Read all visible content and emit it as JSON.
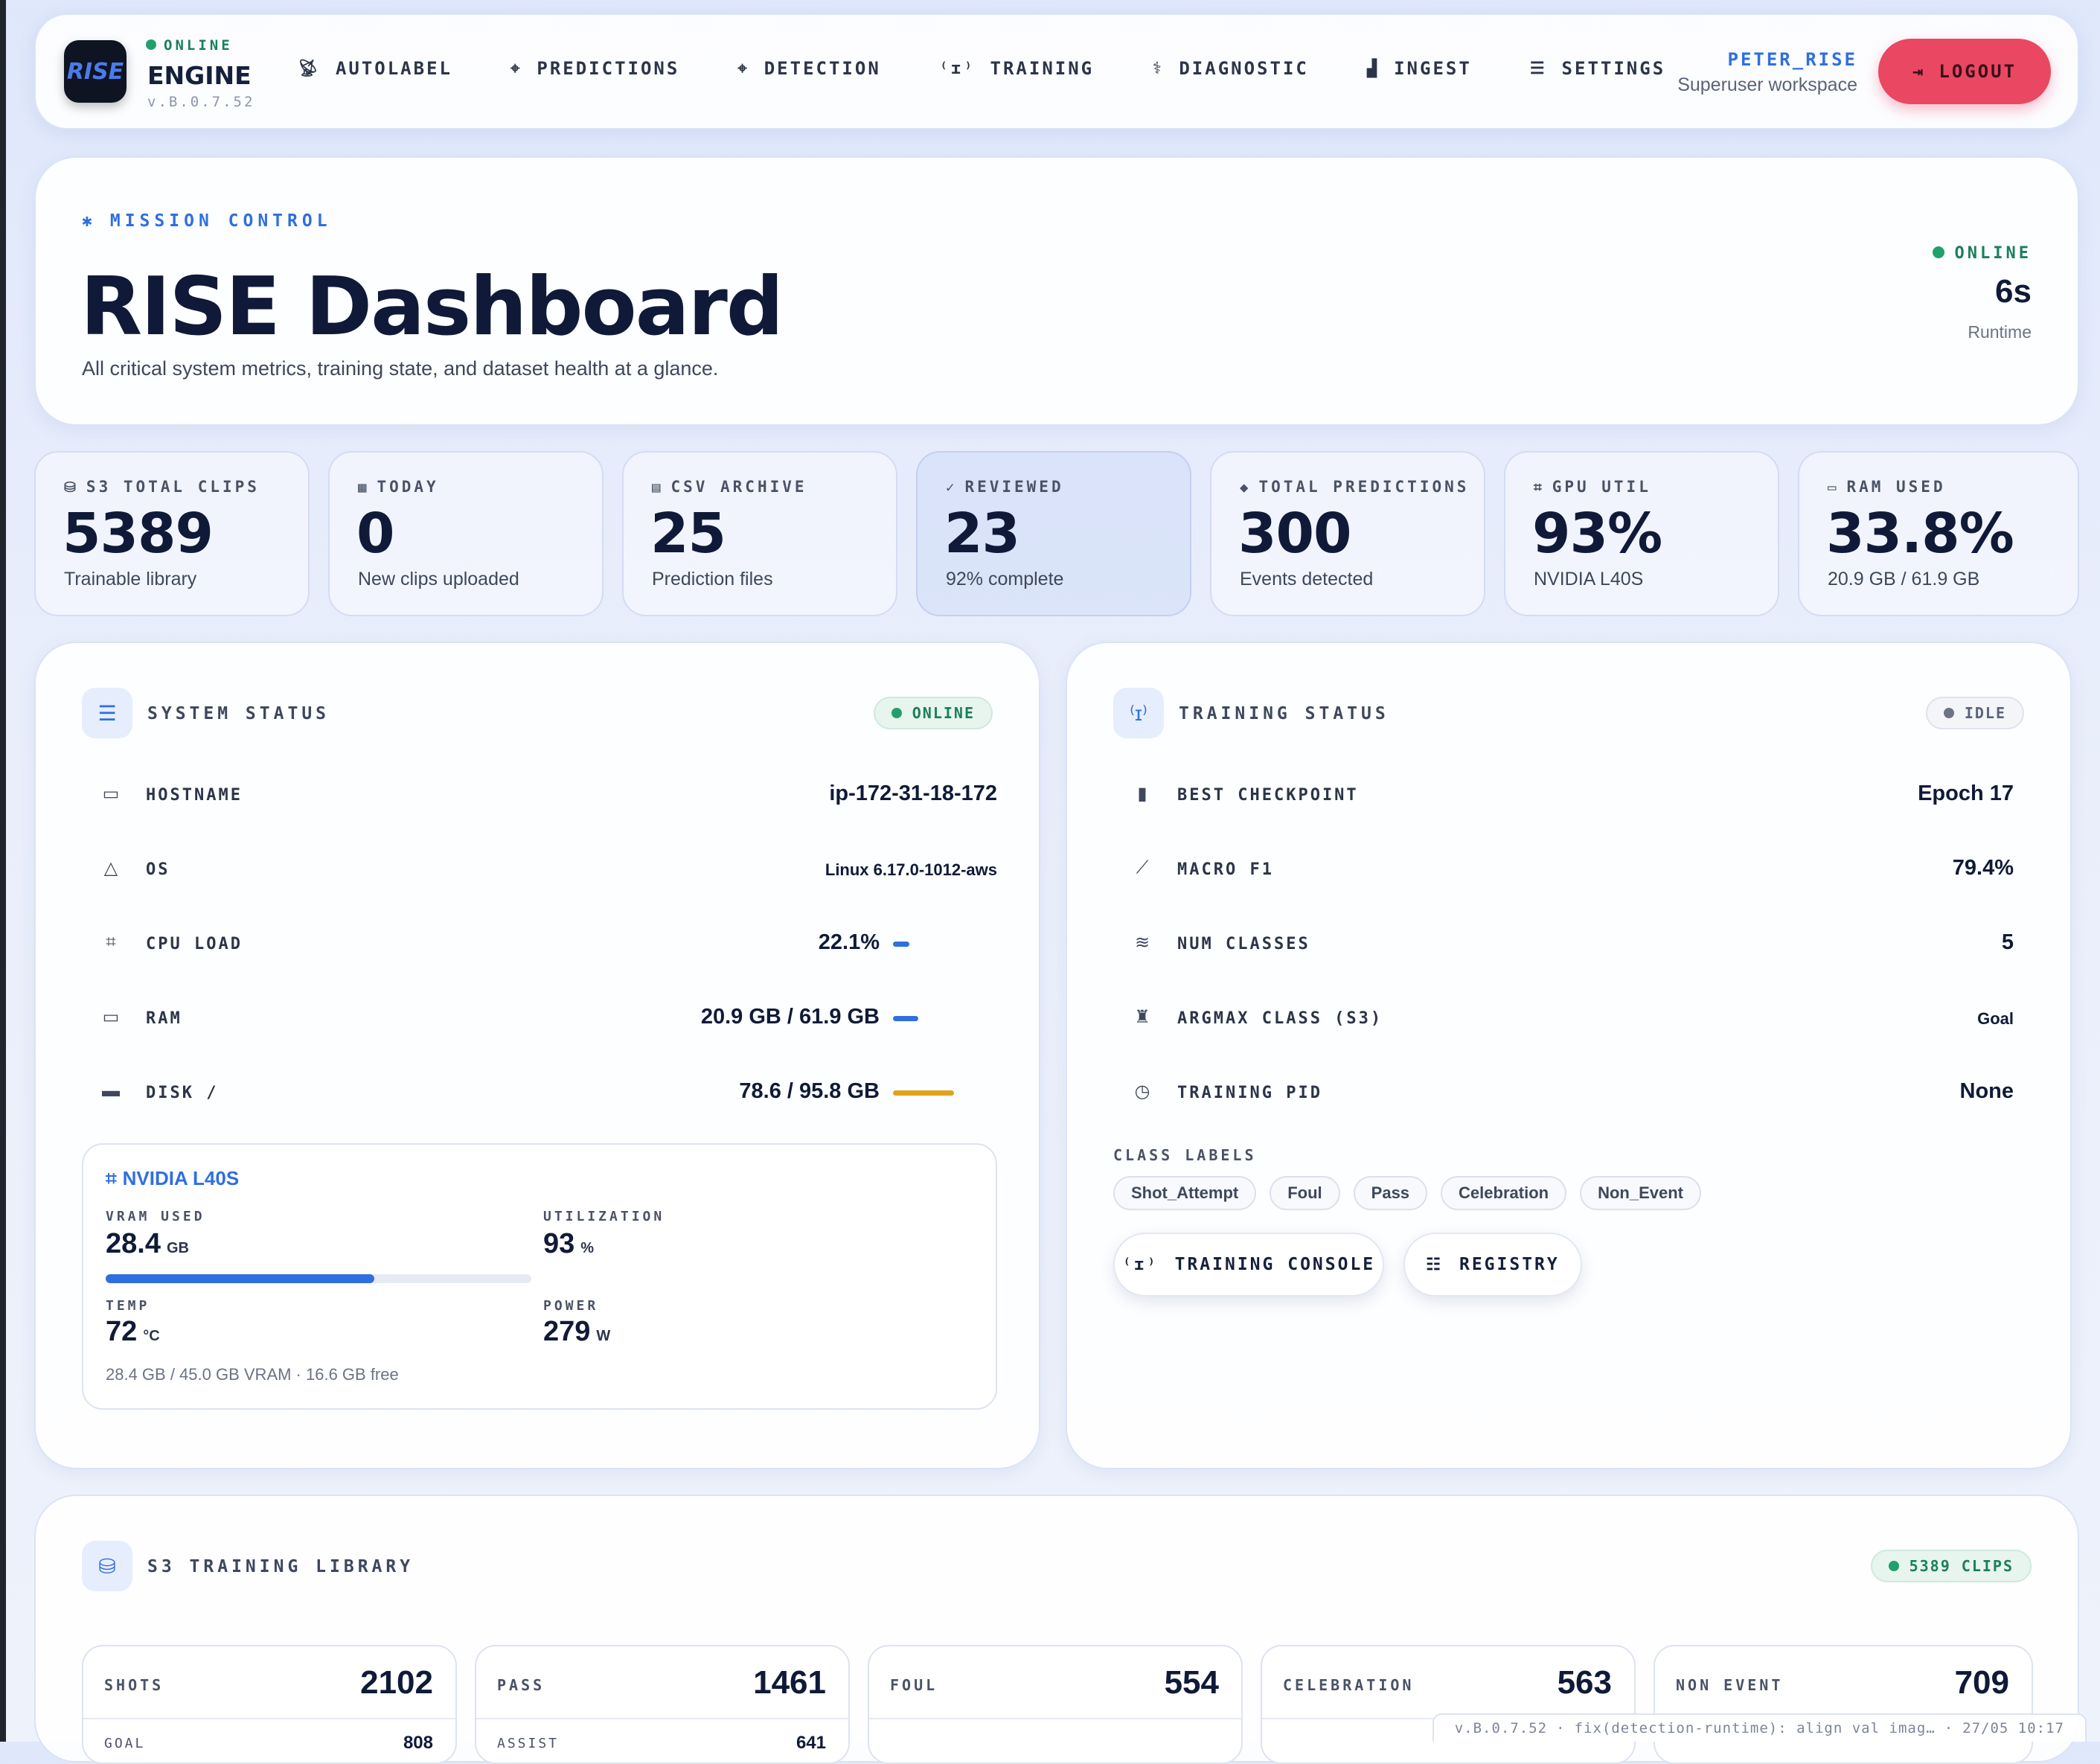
{
  "brand": {
    "status": "ONLINE",
    "name": "ENGINE",
    "version": "v.B.0.7.52",
    "logo_text": "RISE"
  },
  "nav": {
    "items": [
      {
        "label": "AUTOLABEL",
        "icon": "satellite-dish-icon"
      },
      {
        "label": "PREDICTIONS",
        "icon": "crosshair-icon"
      },
      {
        "label": "DETECTION",
        "icon": "crosshair-icon"
      },
      {
        "label": "TRAINING",
        "icon": "antenna-icon"
      },
      {
        "label": "DIAGNOSTIC",
        "icon": "stethoscope-icon"
      },
      {
        "label": "INGEST",
        "icon": "factory-icon"
      },
      {
        "label": "SETTINGS",
        "icon": "sliders-icon"
      }
    ],
    "user": "PETER_RISE",
    "workspace": "Superuser workspace",
    "logout": "LOGOUT"
  },
  "hero": {
    "eyebrow": "MISSION CONTROL",
    "title": "RISE Dashboard",
    "subtitle": "All critical system metrics, training state, and dataset health at a glance.",
    "status": "ONLINE",
    "runtime": "6s",
    "runtime_label": "Runtime"
  },
  "stats": [
    {
      "label": "S3 TOTAL CLIPS",
      "value": "5389",
      "sub": "Trainable library",
      "icon": "database-icon"
    },
    {
      "label": "TODAY",
      "value": "0",
      "sub": "New clips uploaded",
      "icon": "calendar-icon"
    },
    {
      "label": "CSV ARCHIVE",
      "value": "25",
      "sub": "Prediction files",
      "icon": "file-icon"
    },
    {
      "label": "REVIEWED",
      "value": "23",
      "sub": "92% complete",
      "icon": "check-icon"
    },
    {
      "label": "TOTAL PREDICTIONS",
      "value": "300",
      "sub": "Events detected",
      "icon": "tag-icon"
    },
    {
      "label": "GPU UTIL",
      "value": "93%",
      "sub": "NVIDIA L40S",
      "icon": "chip-icon"
    },
    {
      "label": "RAM USED",
      "value": "33.8%",
      "sub": "20.9 GB / 61.9 GB",
      "icon": "memory-icon"
    }
  ],
  "system": {
    "title": "SYSTEM STATUS",
    "badge": "ONLINE",
    "rows": [
      {
        "label": "HOSTNAME",
        "value": "ip-172-31-18-172",
        "icon": "monitor-icon"
      },
      {
        "label": "OS",
        "value": "Linux 6.17.0-1012-aws",
        "icon": "linux-icon"
      },
      {
        "label": "CPU LOAD",
        "value": "22.1%",
        "icon": "cpu-icon",
        "bar": 0.221,
        "bar_color": "#2f6fe0"
      },
      {
        "label": "RAM",
        "value": "20.9 GB / 61.9 GB",
        "icon": "memory-icon",
        "bar": 0.338,
        "bar_color": "#2f6fe0"
      },
      {
        "label": "DISK /",
        "value": "78.6 / 95.8 GB",
        "icon": "disk-icon",
        "bar": 0.82,
        "bar_color": "#e0a21b"
      }
    ],
    "gpu": {
      "name": "NVIDIA L40S",
      "vram_label": "VRAM USED",
      "vram_value": "28.4",
      "vram_unit": "GB",
      "vram_fraction": 0.631,
      "util_label": "UTILIZATION",
      "util_value": "93",
      "util_unit": "%",
      "temp_label": "TEMP",
      "temp_value": "72",
      "temp_unit": "°C",
      "power_label": "POWER",
      "power_value": "279",
      "power_unit": "W",
      "footer": "28.4 GB / 45.0 GB VRAM · 16.6 GB free"
    }
  },
  "training": {
    "title": "TRAINING STATUS",
    "badge": "IDLE",
    "rows": [
      {
        "label": "BEST CHECKPOINT",
        "value": "Epoch 17",
        "icon": "bookmark-icon"
      },
      {
        "label": "MACRO F1",
        "value": "79.4%",
        "icon": "chart-line-icon"
      },
      {
        "label": "NUM CLASSES",
        "value": "5",
        "icon": "layers-icon"
      },
      {
        "label": "ARGMAX CLASS (S3)",
        "value": "Goal",
        "icon": "trophy-icon"
      },
      {
        "label": "TRAINING PID",
        "value": "None",
        "icon": "clock-icon"
      }
    ],
    "class_labels_title": "CLASS LABELS",
    "class_labels": [
      "Shot_Attempt",
      "Foul",
      "Pass",
      "Celebration",
      "Non_Event"
    ],
    "console_button": "TRAINING CONSOLE",
    "registry_button": "REGISTRY"
  },
  "library": {
    "title": "S3 TRAINING LIBRARY",
    "badge": "5389 CLIPS",
    "cards": [
      {
        "label": "SHOTS",
        "value": "2102",
        "sub_label": "GOAL",
        "sub_value": "808"
      },
      {
        "label": "PASS",
        "value": "1461",
        "sub_label": "ASSIST",
        "sub_value": "641"
      },
      {
        "label": "FOUL",
        "value": "554"
      },
      {
        "label": "CELEBRATION",
        "value": "563"
      },
      {
        "label": "NON EVENT",
        "value": "709"
      }
    ]
  },
  "footer": {
    "version": "v.B.0.7.52",
    "commit": "fix(detection-runtime): align val imag…",
    "date": "27/05 10:17"
  }
}
